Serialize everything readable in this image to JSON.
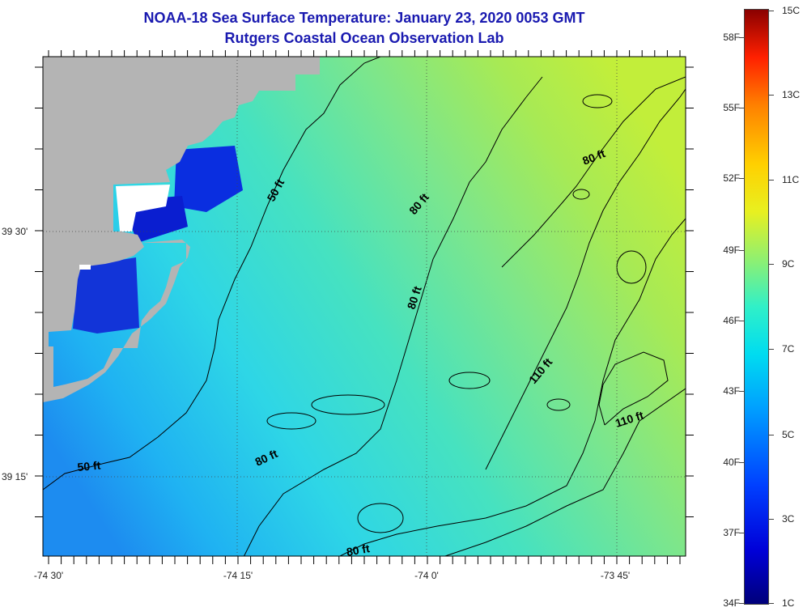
{
  "title": {
    "line1": "NOAA-18 Sea Surface Temperature:  January 23, 2020 0053 GMT",
    "line2": "Rutgers Coastal Ocean Observation Lab"
  },
  "map": {
    "latitude_labels": [
      "39 30'",
      "39 15'"
    ],
    "longitude_labels": [
      "-74 30'",
      "-74 15'",
      "-74 0'",
      "-73 45'"
    ],
    "contour_labels": [
      "50 ft",
      "50 ft",
      "80 ft",
      "80 ft",
      "80 ft",
      "80 ft",
      "80 ft",
      "110 ft",
      "110 ft"
    ],
    "colors": {
      "land": "#b4b4b4",
      "nodata": "#ffffff",
      "frame": "#000000"
    }
  },
  "colorbar": {
    "fahrenheit_labels": [
      "58F",
      "55F",
      "52F",
      "49F",
      "46F",
      "43F",
      "40F",
      "37F",
      "34F"
    ],
    "celsius_labels": [
      "15C",
      "13C",
      "11C",
      "9C",
      "7C",
      "5C",
      "3C",
      "1C"
    ]
  }
}
